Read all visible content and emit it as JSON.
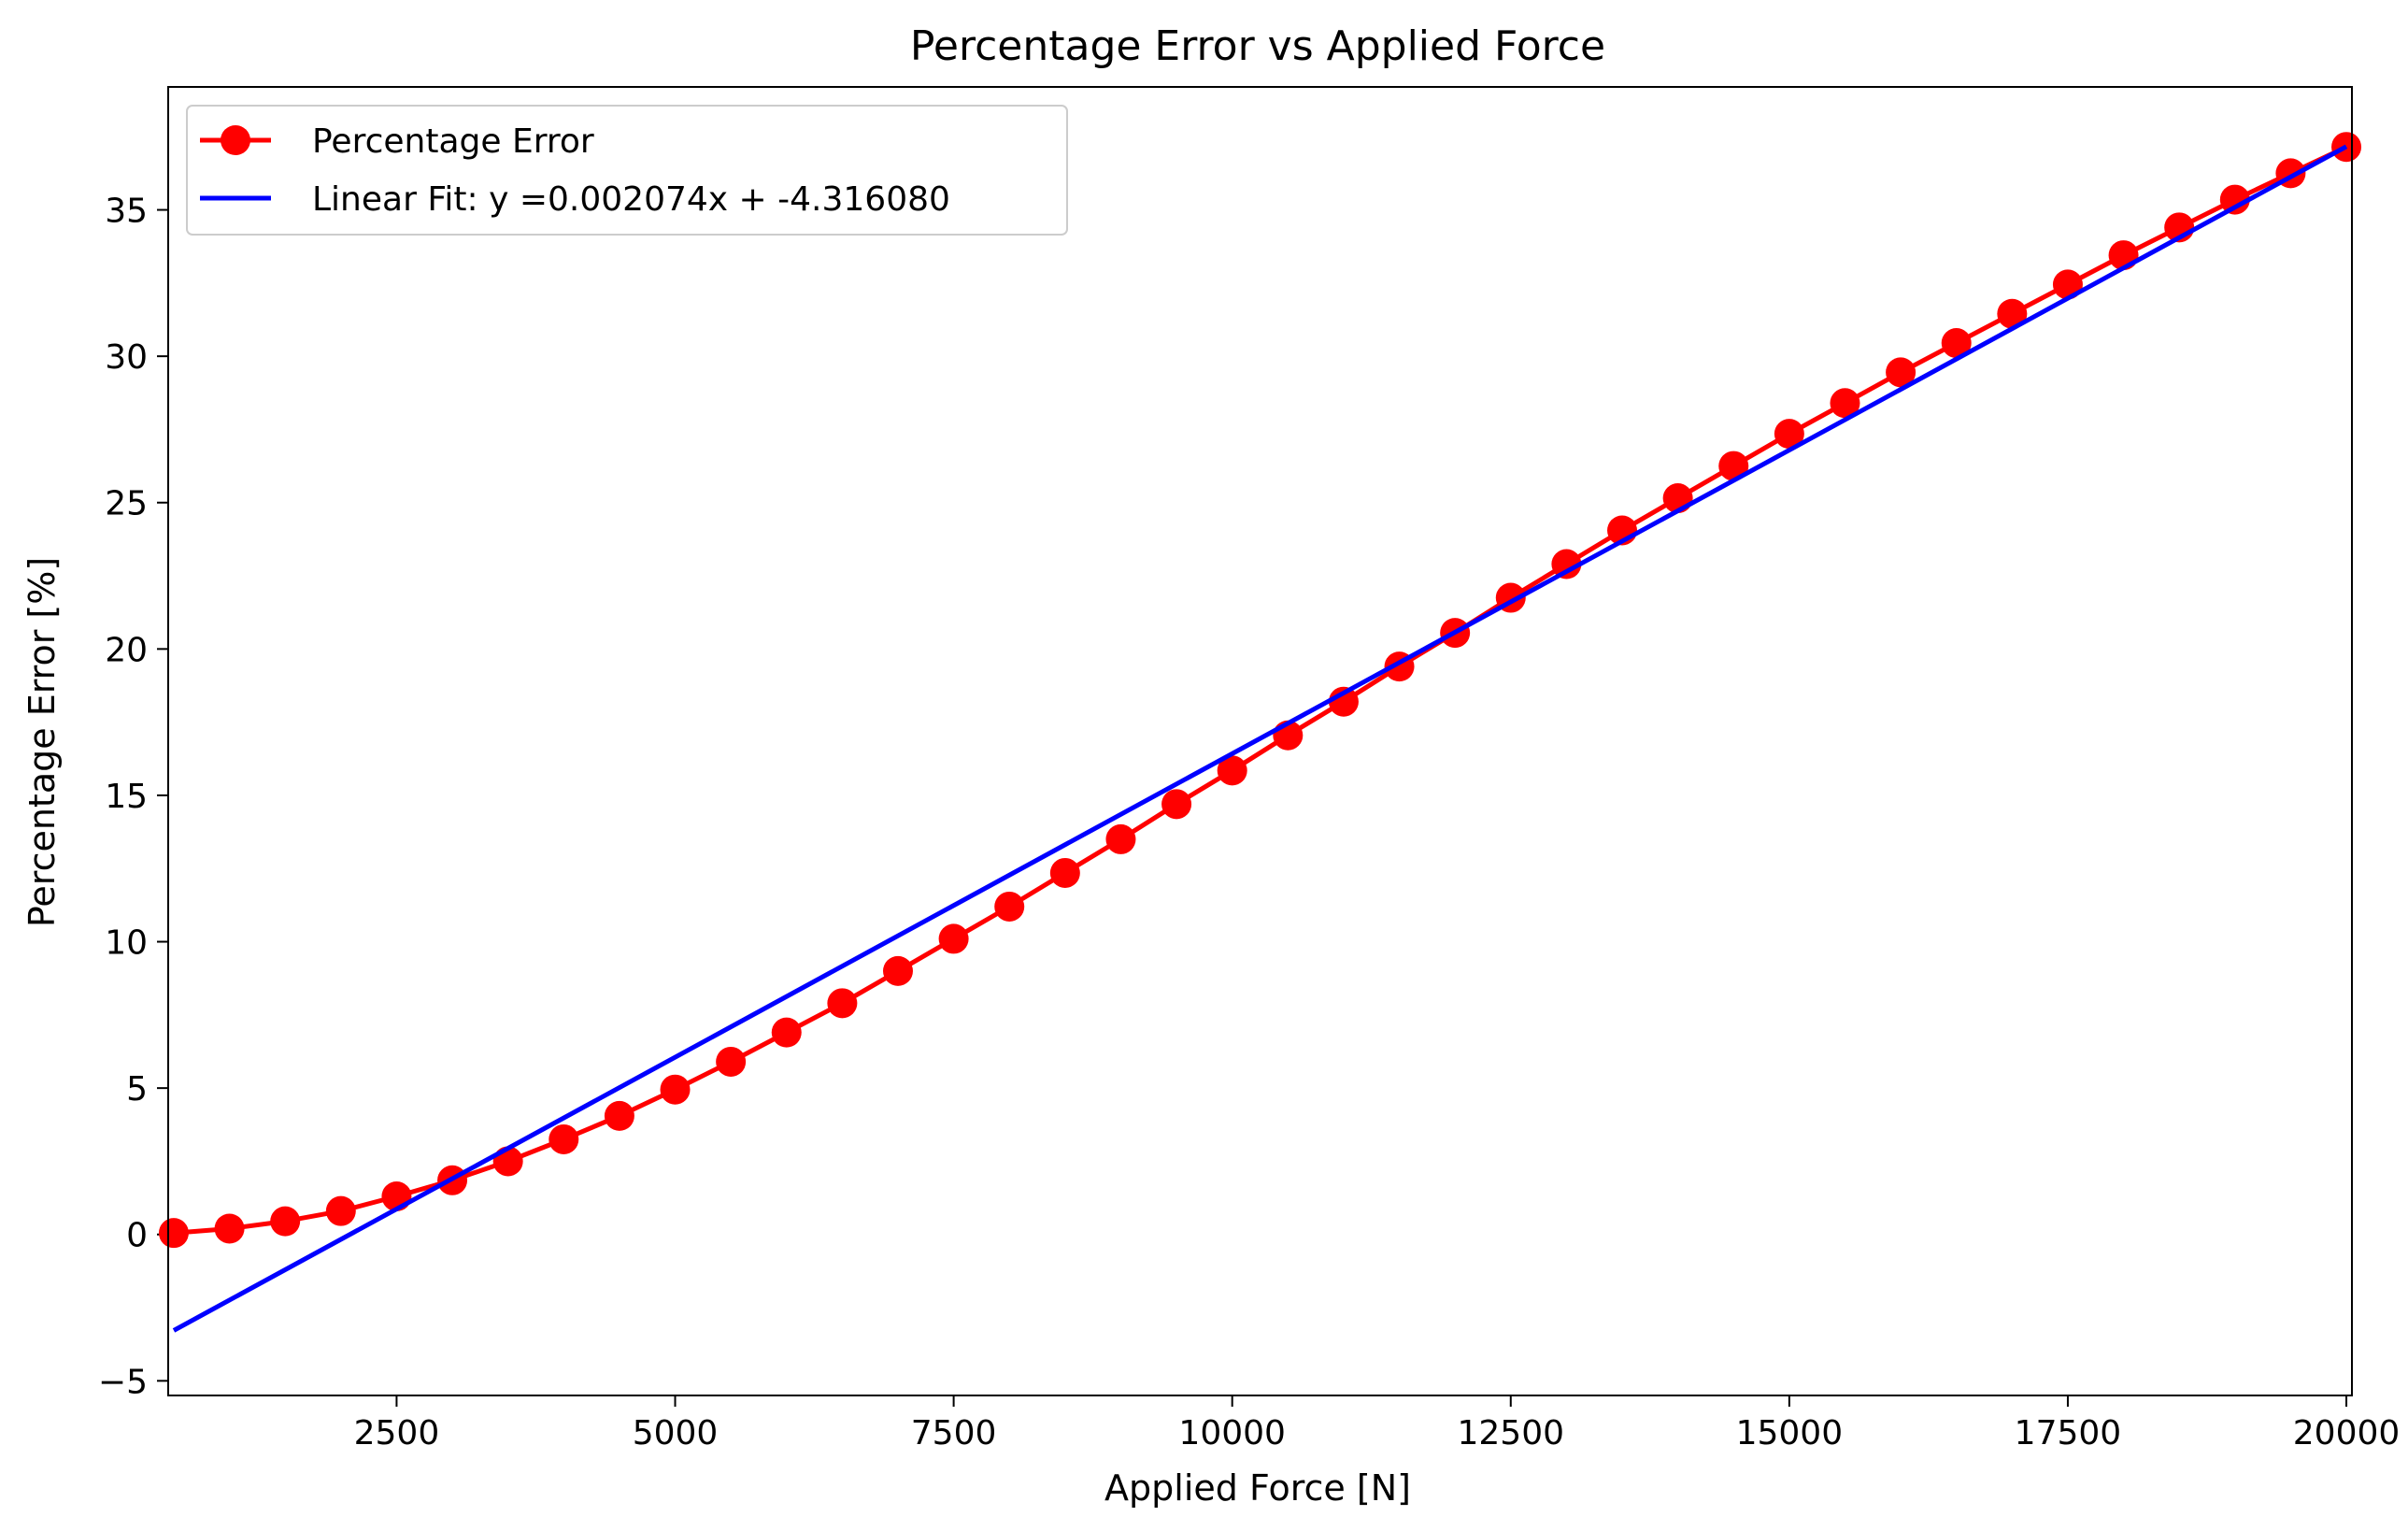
{
  "chart_data": {
    "type": "line",
    "title": "Percentage Error vs Applied Force",
    "xlabel": "Applied Force [N]",
    "ylabel": "Percentage Error [%]",
    "xlim": [
      450,
      20050
    ],
    "ylim": [
      -5.5,
      39.2
    ],
    "x_ticks": [
      2500,
      5000,
      7500,
      10000,
      12500,
      15000,
      17500,
      20000
    ],
    "y_ticks": [
      -5,
      0,
      5,
      10,
      15,
      20,
      25,
      30,
      35
    ],
    "grid": false,
    "legend_position": "upper left",
    "series": [
      {
        "name": "Percentage Error",
        "color": "#ff0000",
        "marker": "circle",
        "x": [
          500,
          1000,
          1500,
          2000,
          2500,
          3000,
          3500,
          4000,
          4500,
          5000,
          5500,
          6000,
          6500,
          7000,
          7500,
          8000,
          8500,
          9000,
          9500,
          10000,
          10500,
          11000,
          11500,
          12000,
          12500,
          13000,
          13500,
          14000,
          14500,
          15000,
          15500,
          16000,
          16500,
          17000,
          17500,
          18000,
          18500,
          19000,
          19500,
          20000
        ],
        "y": [
          0.05,
          0.2,
          0.45,
          0.8,
          1.3,
          1.85,
          2.5,
          3.25,
          4.05,
          4.95,
          5.9,
          6.9,
          7.9,
          9.0,
          10.1,
          11.2,
          12.35,
          13.5,
          14.7,
          15.85,
          17.05,
          18.2,
          19.4,
          20.55,
          21.75,
          22.9,
          24.05,
          25.15,
          26.25,
          27.35,
          28.4,
          29.45,
          30.45,
          31.45,
          32.45,
          33.45,
          34.4,
          35.35,
          36.25,
          37.15
        ]
      },
      {
        "name": "Linear Fit: y =0.002074x + -4.316080",
        "color": "#0000ff",
        "x": [
          500,
          20000
        ],
        "y": [
          -3.279,
          37.164
        ]
      }
    ]
  }
}
